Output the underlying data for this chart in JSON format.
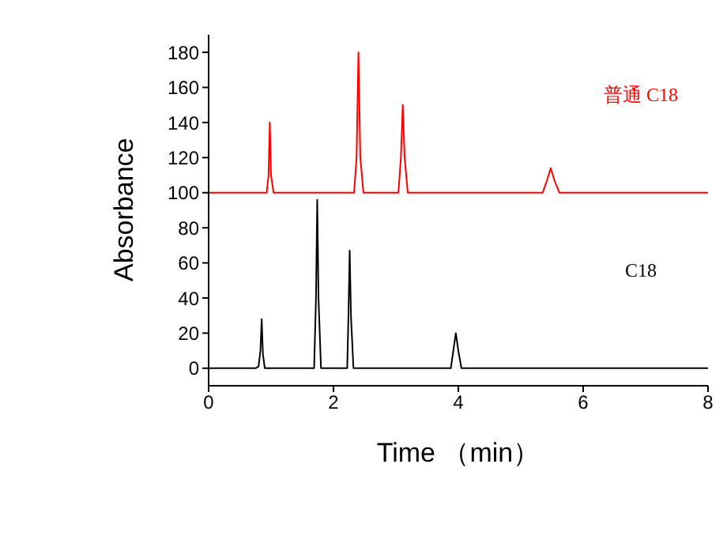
{
  "chart_data": {
    "type": "line",
    "xlabel": "Time （min）",
    "ylabel": "Absorbance",
    "xlim": [
      0,
      8
    ],
    "xticks": [
      0,
      2,
      4,
      6,
      8
    ],
    "ylim": [
      -10,
      190
    ],
    "yticks": [
      0,
      20,
      40,
      60,
      80,
      100,
      120,
      140,
      160,
      180
    ],
    "grid": false,
    "legend": false,
    "marker": "none",
    "line_style": "solid",
    "series": [
      {
        "name": "普通 C18",
        "color": "#ff0000",
        "x": [
          0,
          0.93,
          0.96,
          0.98,
          1.0,
          1.04,
          2.33,
          2.37,
          2.4,
          2.43,
          2.48,
          3.04,
          3.08,
          3.11,
          3.14,
          3.19,
          5.35,
          5.42,
          5.48,
          5.54,
          5.62,
          8
        ],
        "values": [
          100,
          100,
          110,
          140,
          110,
          100,
          100,
          120,
          180,
          120,
          100,
          100,
          120,
          150,
          120,
          100,
          100,
          107,
          114,
          107,
          100,
          100
        ]
      },
      {
        "name": "C18",
        "color": "#000000",
        "x": [
          0,
          0.75,
          0.8,
          0.83,
          0.85,
          0.87,
          0.9,
          1.69,
          1.72,
          1.74,
          1.76,
          1.8,
          2.22,
          2.24,
          2.26,
          2.28,
          2.32,
          3.88,
          3.92,
          3.96,
          4.0,
          4.05,
          8
        ],
        "values": [
          0,
          0,
          1,
          10,
          28,
          8,
          0,
          0,
          40,
          96,
          40,
          0,
          0,
          30,
          67,
          30,
          0,
          0,
          10,
          20,
          10,
          0,
          0
        ]
      }
    ]
  }
}
